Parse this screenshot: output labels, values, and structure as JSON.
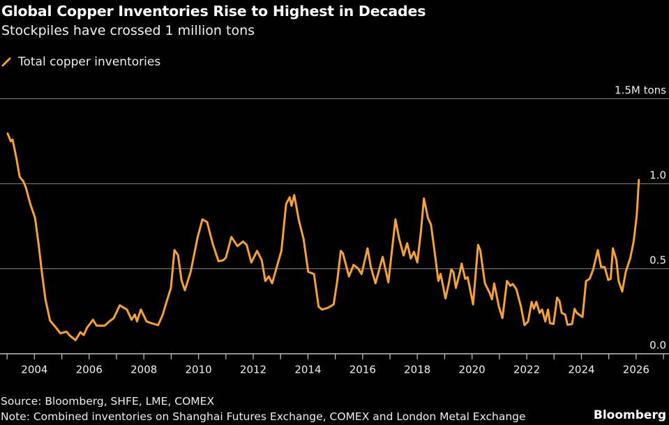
{
  "title": "Global Copper Inventories Rise to Highest in Decades",
  "subtitle": "Stockpiles have crossed 1 million tons",
  "legend": {
    "label": "Total copper inventories",
    "icon": "slash-line-icon"
  },
  "source": "Source: Bloomberg, SHFE, LME, COMEX",
  "note": "Note: Combined inventories on Shanghai Futures Exchange, COMEX and London Metal Exchange",
  "brand": "Bloomberg",
  "colors": {
    "background": "#000000",
    "line": "#f7a234",
    "grid": "#7a7a7a",
    "text": "#ffffff"
  },
  "chart_data": {
    "type": "line",
    "title": "Global Copper Inventories Rise to Highest in Decades",
    "xlabel": "",
    "ylabel": "",
    "unit": "M tons",
    "xlim": [
      2002.74,
      2027.1
    ],
    "ylim": [
      0,
      1.5
    ],
    "grid": true,
    "legend_position": "top-left",
    "x_ticks": [
      "2004",
      "2006",
      "2008",
      "2010",
      "2012",
      "2014",
      "2016",
      "2018",
      "2020",
      "2022",
      "2024",
      "2026"
    ],
    "y_ticks": [
      {
        "value": 1.5,
        "label": "1.5M tons"
      },
      {
        "value": 1.0,
        "label": "1.0"
      },
      {
        "value": 0.5,
        "label": "0.5"
      },
      {
        "value": 0.0,
        "label": "0.0"
      }
    ],
    "series": [
      {
        "name": "Total copper inventories",
        "x": [
          2003.02,
          2003.13,
          2003.2,
          2003.34,
          2003.46,
          2003.59,
          2003.68,
          2003.85,
          2004.02,
          2004.15,
          2004.27,
          2004.4,
          2004.57,
          2004.78,
          2004.95,
          2005.17,
          2005.29,
          2005.5,
          2005.68,
          2005.8,
          2005.93,
          2006.14,
          2006.27,
          2006.57,
          2006.74,
          2006.9,
          2007.12,
          2007.38,
          2007.55,
          2007.67,
          2007.75,
          2007.89,
          2008.1,
          2008.27,
          2008.52,
          2008.69,
          2008.86,
          2008.99,
          2009.12,
          2009.25,
          2009.38,
          2009.5,
          2009.71,
          2009.97,
          2010.14,
          2010.31,
          2010.52,
          2010.73,
          2010.9,
          2011.0,
          2011.2,
          2011.42,
          2011.63,
          2011.76,
          2011.93,
          2012.14,
          2012.31,
          2012.44,
          2012.57,
          2012.69,
          2012.86,
          2013.03,
          2013.2,
          2013.33,
          2013.4,
          2013.5,
          2013.67,
          2013.84,
          2014.01,
          2014.22,
          2014.39,
          2014.52,
          2014.73,
          2014.94,
          2015.07,
          2015.2,
          2015.28,
          2015.5,
          2015.67,
          2015.84,
          2015.96,
          2016.18,
          2016.3,
          2016.47,
          2016.73,
          2016.94,
          2017.2,
          2017.33,
          2017.5,
          2017.63,
          2017.76,
          2017.88,
          2018.0,
          2018.13,
          2018.24,
          2018.39,
          2018.5,
          2018.64,
          2018.77,
          2018.85,
          2019.03,
          2019.15,
          2019.24,
          2019.32,
          2019.41,
          2019.54,
          2019.62,
          2019.75,
          2019.84,
          2020.04,
          2020.22,
          2020.3,
          2020.47,
          2020.64,
          2020.73,
          2020.81,
          2020.98,
          2021.11,
          2021.28,
          2021.4,
          2021.49,
          2021.62,
          2021.79,
          2021.92,
          2022.05,
          2022.18,
          2022.26,
          2022.35,
          2022.47,
          2022.56,
          2022.68,
          2022.78,
          2022.85,
          2022.98,
          2023.11,
          2023.2,
          2023.28,
          2023.41,
          2023.49,
          2023.66,
          2023.75,
          2023.83,
          2024.04,
          2024.17,
          2024.3,
          2024.43,
          2024.6,
          2024.72,
          2024.85,
          2024.98,
          2025.07,
          2025.15,
          2025.28,
          2025.36,
          2025.49,
          2025.62,
          2025.79,
          2025.91,
          2026.02,
          2026.1
        ],
        "y": [
          1.295,
          1.25,
          1.26,
          1.15,
          1.04,
          1.015,
          0.98,
          0.88,
          0.8,
          0.646,
          0.48,
          0.32,
          0.195,
          0.155,
          0.12,
          0.13,
          0.107,
          0.08,
          0.127,
          0.11,
          0.155,
          0.2,
          0.165,
          0.165,
          0.19,
          0.21,
          0.285,
          0.26,
          0.2,
          0.23,
          0.19,
          0.26,
          0.19,
          0.18,
          0.168,
          0.23,
          0.32,
          0.387,
          0.61,
          0.58,
          0.43,
          0.373,
          0.48,
          0.687,
          0.79,
          0.775,
          0.646,
          0.544,
          0.55,
          0.565,
          0.687,
          0.633,
          0.66,
          0.64,
          0.537,
          0.605,
          0.55,
          0.428,
          0.455,
          0.414,
          0.51,
          0.605,
          0.88,
          0.92,
          0.87,
          0.933,
          0.783,
          0.674,
          0.482,
          0.469,
          0.277,
          0.26,
          0.27,
          0.29,
          0.428,
          0.605,
          0.59,
          0.455,
          0.523,
          0.5,
          0.469,
          0.62,
          0.51,
          0.414,
          0.57,
          0.42,
          0.79,
          0.68,
          0.578,
          0.65,
          0.56,
          0.6,
          0.537,
          0.715,
          0.913,
          0.797,
          0.76,
          0.59,
          0.428,
          0.47,
          0.325,
          0.414,
          0.496,
          0.48,
          0.387,
          0.469,
          0.53,
          0.44,
          0.45,
          0.29,
          0.64,
          0.61,
          0.414,
          0.36,
          0.32,
          0.414,
          0.277,
          0.21,
          0.428,
          0.4,
          0.41,
          0.38,
          0.277,
          0.168,
          0.19,
          0.305,
          0.265,
          0.305,
          0.24,
          0.26,
          0.19,
          0.26,
          0.18,
          0.175,
          0.33,
          0.31,
          0.24,
          0.23,
          0.17,
          0.175,
          0.264,
          0.24,
          0.216,
          0.428,
          0.44,
          0.496,
          0.61,
          0.51,
          0.51,
          0.434,
          0.44,
          0.62,
          0.55,
          0.428,
          0.366,
          0.482,
          0.564,
          0.66,
          0.81,
          1.022
        ]
      }
    ]
  }
}
